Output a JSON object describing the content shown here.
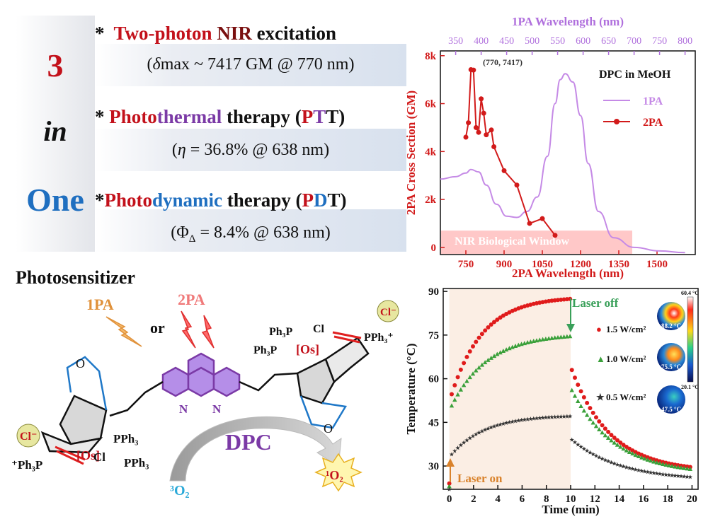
{
  "left_banner": {
    "number": "3",
    "word_in": "in",
    "word_one": "One"
  },
  "features": [
    {
      "bullet": "*",
      "part1": "Two-photon ",
      "part2": "NIR",
      "part3": " excitation",
      "detail_prefix": "(",
      "detail_symbol": "δ",
      "detail_rest": "max ~ 7417 GM @ 770 nm)"
    },
    {
      "bullet": "*",
      "part_a": "Photo",
      "part_b": "thermal",
      "part_c": " therapy (",
      "part_d": "P",
      "part_e": "T",
      "part_f": "T)",
      "detail_prefix": "(",
      "detail_symbol": "η",
      "detail_rest": " = 36.8% @ 638 nm)"
    },
    {
      "bullet": "*",
      "part_a": "Photo",
      "part_b": "dynamic",
      "part_c": " therapy (",
      "part_d": "P",
      "part_e": "D",
      "part_f": "T)",
      "detail_prefix": "(Φ",
      "detail_sub": "Δ",
      "detail_rest": " = 8.4% @ 638 nm)"
    }
  ],
  "photosensitizer": {
    "heading": "Photosensitizer",
    "label_1pa": "1PA",
    "label_or": "or",
    "label_2pa": "2PA",
    "compound_name": "DPC",
    "triplet_oxygen": "³O₂",
    "singlet_oxygen": "¹O₂",
    "atoms": {
      "os_left": "[Os]",
      "os_right": "[Os]",
      "pph3_a": "PPh₃",
      "pph3_b": "PPh₃",
      "ph3p_left": "⁺Ph₃P",
      "cl_left": "Cl",
      "cl_anion_left": "Cl⁻",
      "ph3p_r1": "Ph₃P",
      "ph3p_r2": "Ph₃P",
      "cl_right": "Cl",
      "pph3_right": "PPh₃⁺",
      "cl_anion_right": "Cl⁻",
      "n1": "N",
      "n2": "N",
      "o_left": "O",
      "o_right": "O"
    }
  },
  "chart_data": [
    {
      "type": "line",
      "title": "",
      "top_axis_label": "1PA Wavelength (nm)",
      "top_ticks": [
        350,
        400,
        450,
        500,
        550,
        600,
        650,
        700,
        750,
        800
      ],
      "xlabel": "2PA Wavelength (nm)",
      "ylabel": "2PA Cross Section (GM)",
      "x_ticks": [
        750,
        900,
        1050,
        1200,
        1350,
        1500
      ],
      "y_ticks": [
        "0",
        "2k",
        "4k",
        "6k",
        "8k"
      ],
      "xlim": [
        650,
        1650
      ],
      "ylim": [
        -300,
        8200
      ],
      "legend_title": "DPC in MeOH",
      "legend": [
        "1PA",
        "2PA"
      ],
      "annotation": "(770, 7417)",
      "shaded_region_label": "NIR Biological Window",
      "series": [
        {
          "name": "2PA",
          "color": "#d21a1a",
          "x": [
            750,
            760,
            770,
            780,
            790,
            800,
            810,
            820,
            830,
            850,
            860,
            900,
            950,
            1000,
            1050,
            1100
          ],
          "y": [
            4600,
            5200,
            7417,
            7400,
            5000,
            4800,
            6200,
            5600,
            4700,
            4900,
            4200,
            3200,
            2600,
            1000,
            1200,
            500
          ]
        },
        {
          "name": "1PA",
          "color": "#c58ae6",
          "x_1pa_nm": [
            320,
            350,
            370,
            380,
            395,
            410,
            430,
            450,
            470,
            490,
            510,
            530,
            545,
            555,
            565,
            580,
            595,
            610,
            630,
            660,
            700,
            750,
            800
          ],
          "y_scaled": [
            2850,
            2950,
            3100,
            3250,
            3150,
            2600,
            1800,
            1300,
            1250,
            1500,
            2100,
            3800,
            6000,
            7000,
            7250,
            6900,
            5500,
            3500,
            1500,
            400,
            0,
            -150,
            -220
          ]
        }
      ]
    },
    {
      "type": "scatter",
      "title": "",
      "xlabel": "Time (min)",
      "ylabel": "Temperature (°C)",
      "xlim": [
        -0.5,
        20.5
      ],
      "ylim": [
        22,
        91
      ],
      "x_ticks": [
        0,
        2,
        4,
        6,
        8,
        10,
        12,
        14,
        16,
        18,
        20
      ],
      "y_ticks": [
        30,
        45,
        60,
        75,
        90
      ],
      "laser_on_label": "Laser on",
      "laser_off_label": "Laser off",
      "colorbar_max": "60.4 °C",
      "colorbar_min": "20.1 °C",
      "series": [
        {
          "name": "1.5 W/cm²",
          "color": "#e01b1b",
          "marker": "circle",
          "start": 24,
          "plateau": 88.2,
          "jump": 52,
          "tau_heat": 2.6,
          "tau_cool": 3.2,
          "final": 28,
          "thermal_label": "88.2 °C"
        },
        {
          "name": "1.0 W/cm²",
          "color": "#3aa03a",
          "marker": "triangle",
          "start": 23,
          "plateau": 75.5,
          "jump": 49,
          "tau_heat": 3.0,
          "tau_cool": 3.6,
          "final": 27,
          "thermal_label": "75.5 °C"
        },
        {
          "name": "0.5 W/cm²",
          "color": "#333333",
          "marker": "star",
          "start": 22,
          "plateau": 47.5,
          "jump": 33,
          "tau_heat": 2.8,
          "tau_cool": 4.0,
          "final": 25,
          "thermal_label": "47.5 °C"
        }
      ]
    }
  ]
}
